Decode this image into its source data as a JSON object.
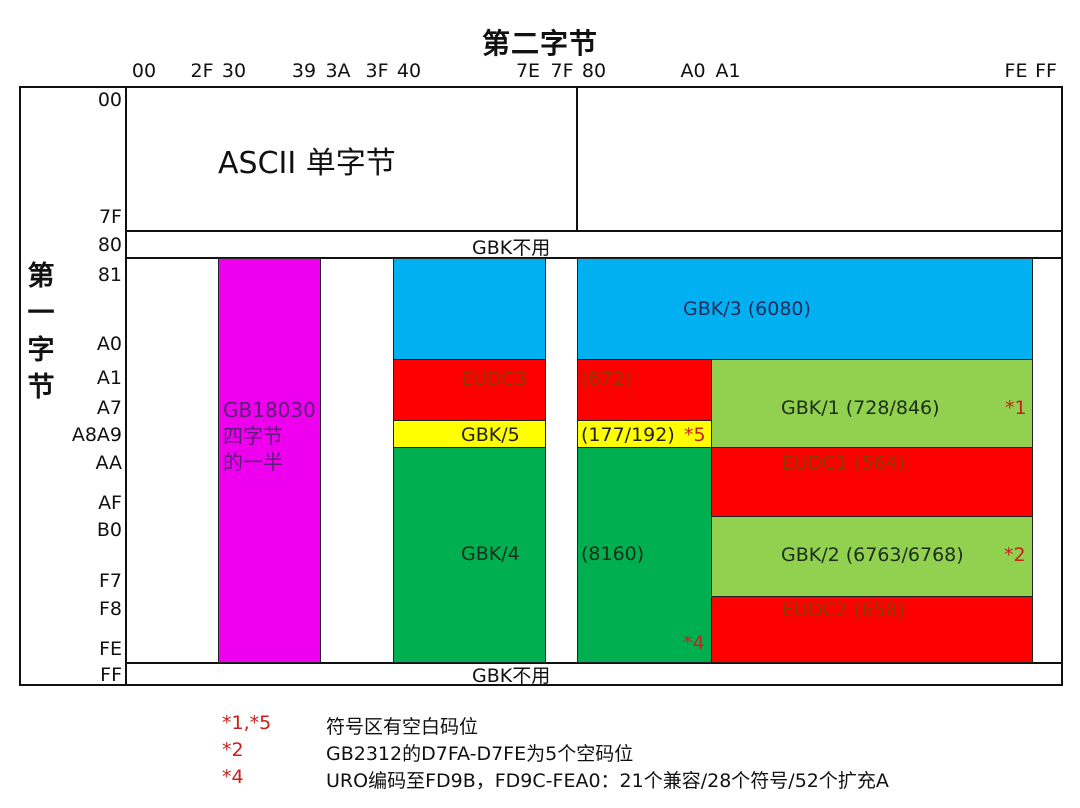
{
  "header": {
    "title": "第二字节"
  },
  "side": {
    "title": "第一字节",
    "chars": [
      "第",
      "一",
      "字",
      "节"
    ]
  },
  "col_ticks": [
    "00",
    "2F",
    "30",
    "39",
    "3A",
    "3F",
    "40",
    "7E",
    "7F",
    "80",
    "A0",
    "A1",
    "FE",
    "FF"
  ],
  "row_ticks": [
    "00",
    "7F",
    "80",
    "81",
    "A0",
    "A1",
    "A7",
    "A8A9",
    "AA",
    "AF",
    "B0",
    "F7",
    "F8",
    "FE",
    "FF"
  ],
  "regions": {
    "ascii": "ASCII 单字节",
    "unused_top": "GBK不用",
    "unused_bottom": "GBK不用",
    "gb18030": [
      "GB18030",
      "四字节",
      "的一半"
    ],
    "gbk3": "GBK/3 (6080)",
    "eudc3_a": "EUDC3",
    "eudc3_b": "(672)",
    "gbk5_a": "GBK/5",
    "gbk5_b": "(177/192)",
    "gbk5_mark": "*5",
    "gbk4_a": "GBK/4",
    "gbk4_b": "(8160)",
    "gbk4_mark": "*4",
    "gbk1": "GBK/1 (728/846)",
    "gbk1_mark": "*1",
    "eudc1": "EUDC1 (564)",
    "gbk2": "GBK/2  (6763/6768)",
    "gbk2_mark": "*2",
    "eudc2": "EUDC2 (658)"
  },
  "colors": {
    "magenta": "#ee00ee",
    "blue": "#00b0f0",
    "red": "#ff0000",
    "yellow": "#ffff00",
    "green": "#00b050",
    "light_green": "#92d050",
    "note_red": "#c8201b"
  },
  "notes": [
    {
      "code": "*1,*5",
      "text": "符号区有空白码位"
    },
    {
      "code": "*2",
      "text": "GB2312的D7FA-D7FE为5个空码位"
    },
    {
      "code": "*4",
      "text": "URO编码至FD9B，FD9C-FEA0：21个兼容/28个符号/52个扩充A"
    }
  ]
}
